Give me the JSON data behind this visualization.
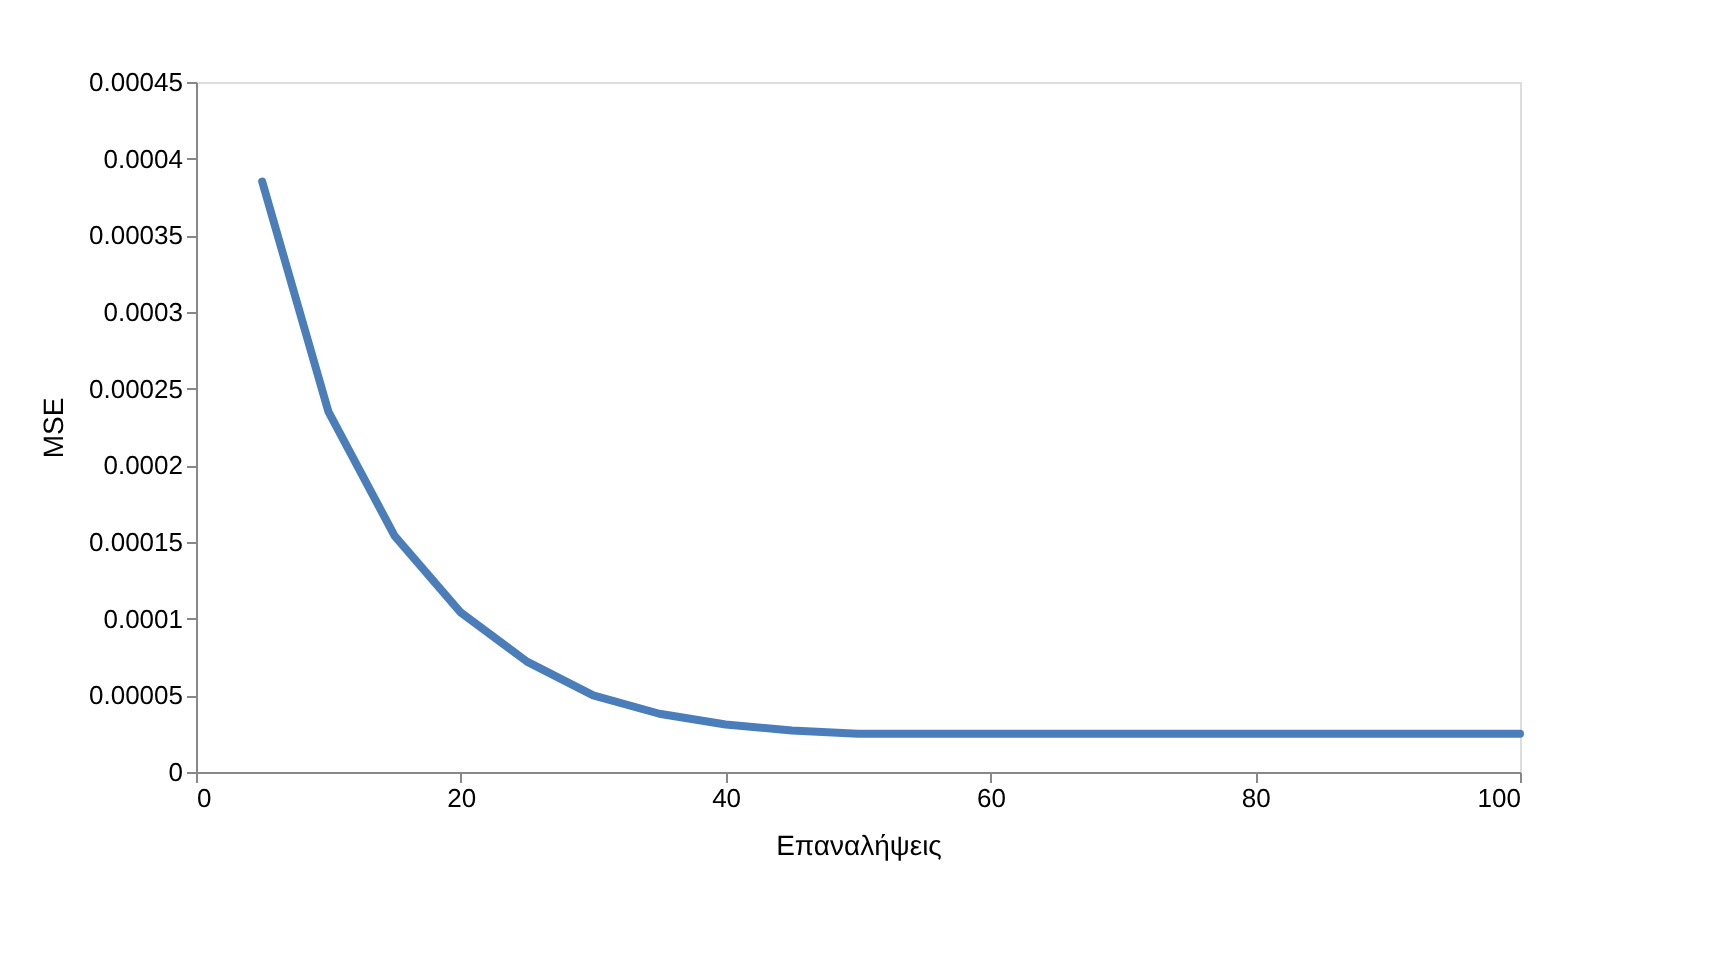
{
  "chart_data": {
    "type": "line",
    "xlabel": "Επαναλήψεις",
    "ylabel": "MSE",
    "x": [
      5,
      10,
      15,
      20,
      25,
      30,
      35,
      40,
      45,
      50,
      55,
      60,
      65,
      70,
      75,
      80,
      85,
      90,
      95,
      100
    ],
    "series": [
      {
        "color": "#4a7ebb",
        "values": [
          0.000385,
          0.000235,
          0.000154,
          0.000104,
          7.2e-05,
          5e-05,
          3.8e-05,
          3.1e-05,
          2.7e-05,
          2.5e-05,
          2.5e-05,
          2.5e-05,
          2.5e-05,
          2.5e-05,
          2.5e-05,
          2.5e-05,
          2.5e-05,
          2.5e-05,
          2.5e-05,
          2.5e-05
        ]
      }
    ],
    "xlim": [
      0,
      100
    ],
    "xticks": [
      0,
      20,
      40,
      60,
      80,
      100
    ],
    "ylim": [
      0,
      0.00045
    ],
    "yticks": [
      {
        "value": 0,
        "label": "0"
      },
      {
        "value": 5e-05,
        "label": "0.00005"
      },
      {
        "value": 0.0001,
        "label": "0.0001"
      },
      {
        "value": 0.00015,
        "label": "0.00015"
      },
      {
        "value": 0.0002,
        "label": "0.0002"
      },
      {
        "value": 0.00025,
        "label": "0.00025"
      },
      {
        "value": 0.0003,
        "label": "0.0003"
      },
      {
        "value": 0.00035,
        "label": "0.00035"
      },
      {
        "value": 0.0004,
        "label": "0.0004"
      },
      {
        "value": 0.00045,
        "label": "0.00045"
      }
    ],
    "grid": false,
    "legend": false,
    "marker": "none",
    "line_style": "solid"
  }
}
